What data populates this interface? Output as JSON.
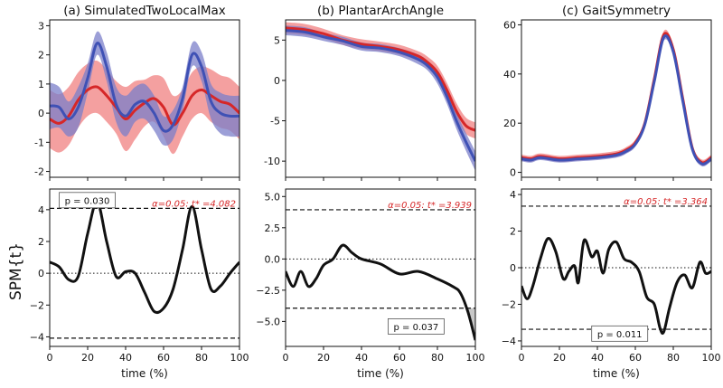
{
  "figure": {
    "ylabel": "SPM{t}",
    "xlabel": "time (%)"
  },
  "colors": {
    "red": "#d62728",
    "red_band": "#f08080",
    "blue": "#3f51b5",
    "blue_band": "#7b7fc9",
    "text": "#111111",
    "threshold_text": "#d62728",
    "shade": "#c8c8c8"
  },
  "chart_data": [
    {
      "id": "a-top",
      "type": "line",
      "title": "(a) SimulatedTwoLocalMax",
      "xlabel": "",
      "ylabel": "",
      "xlim": [
        0,
        100
      ],
      "ylim": [
        -2.2,
        3.2
      ],
      "xticks": [
        0,
        20,
        40,
        60,
        80,
        100
      ],
      "yticks": [
        -2,
        -1,
        0,
        1,
        2,
        3
      ],
      "show_xticklabels": false,
      "x": [
        0,
        5,
        10,
        15,
        20,
        25,
        30,
        35,
        40,
        45,
        50,
        55,
        60,
        65,
        70,
        75,
        80,
        85,
        90,
        95,
        100
      ],
      "series": [
        {
          "name": "red mean",
          "color": "red",
          "values": [
            -0.2,
            -0.35,
            -0.1,
            0.45,
            0.8,
            0.9,
            0.6,
            0.2,
            -0.2,
            0.1,
            0.35,
            0.5,
            0.2,
            -0.4,
            0.0,
            0.6,
            0.8,
            0.6,
            0.4,
            0.3,
            0.0
          ],
          "sd": [
            1.0,
            1.0,
            1.0,
            0.95,
            0.9,
            0.9,
            0.9,
            0.9,
            1.1,
            1.0,
            0.8,
            0.8,
            1.0,
            1.0,
            0.8,
            0.8,
            0.8,
            0.9,
            0.9,
            0.9,
            0.9
          ]
        },
        {
          "name": "blue mean",
          "color": "blue",
          "values": [
            0.25,
            0.2,
            -0.2,
            0.2,
            1.2,
            2.4,
            1.6,
            0.3,
            -0.1,
            0.3,
            0.4,
            0.0,
            -0.6,
            -0.4,
            0.5,
            2.0,
            1.6,
            0.4,
            0.0,
            -0.1,
            -0.1
          ],
          "sd": [
            0.8,
            0.7,
            0.6,
            0.7,
            0.5,
            0.4,
            0.5,
            0.6,
            0.7,
            0.6,
            0.6,
            0.6,
            0.5,
            0.5,
            0.4,
            0.4,
            0.5,
            0.6,
            0.7,
            0.7,
            0.7
          ]
        }
      ]
    },
    {
      "id": "b-top",
      "type": "line",
      "title": "(b) PlantarArchAngle",
      "xlabel": "",
      "ylabel": "",
      "xlim": [
        0,
        100
      ],
      "ylim": [
        -12,
        7.5
      ],
      "xticks": [
        0,
        20,
        40,
        60,
        80,
        100
      ],
      "yticks": [
        -10,
        -5,
        0,
        5
      ],
      "show_xticklabels": false,
      "x": [
        0,
        10,
        20,
        30,
        40,
        50,
        60,
        70,
        75,
        80,
        85,
        90,
        95,
        100
      ],
      "series": [
        {
          "name": "red mean",
          "color": "red",
          "values": [
            6.5,
            6.3,
            5.8,
            5.0,
            4.5,
            4.2,
            3.8,
            3.0,
            2.2,
            1.0,
            -1.2,
            -3.8,
            -5.6,
            -6.2
          ],
          "sd": [
            0.7,
            0.7,
            0.6,
            0.6,
            0.6,
            0.6,
            0.6,
            0.6,
            0.7,
            0.8,
            0.9,
            1.0,
            1.0,
            1.0
          ]
        },
        {
          "name": "blue mean",
          "color": "blue",
          "values": [
            6.2,
            6.0,
            5.4,
            4.9,
            4.2,
            4.0,
            3.5,
            2.6,
            1.8,
            0.4,
            -2.0,
            -5.0,
            -7.6,
            -10.0
          ],
          "sd": [
            0.6,
            0.6,
            0.5,
            0.5,
            0.5,
            0.5,
            0.5,
            0.6,
            0.6,
            0.8,
            0.9,
            1.0,
            1.1,
            1.2
          ]
        }
      ]
    },
    {
      "id": "c-top",
      "type": "line",
      "title": "(c) GaitSymmetry",
      "xlabel": "",
      "ylabel": "",
      "xlim": [
        0,
        100
      ],
      "ylim": [
        -2,
        62
      ],
      "xticks": [
        0,
        20,
        40,
        60,
        80,
        100
      ],
      "yticks": [
        0,
        20,
        40,
        60
      ],
      "show_xticklabels": false,
      "x": [
        0,
        5,
        10,
        20,
        30,
        40,
        50,
        55,
        60,
        65,
        70,
        75,
        80,
        85,
        90,
        95,
        100
      ],
      "series": [
        {
          "name": "red mean",
          "color": "red",
          "values": [
            6,
            5.5,
            6.5,
            5.5,
            6,
            6.5,
            7.5,
            9,
            12,
            20,
            38,
            56,
            50,
            30,
            10,
            4,
            6
          ],
          "sd": [
            1.2,
            1.2,
            1.2,
            1.2,
            1.2,
            1.2,
            1.2,
            1.2,
            1.3,
            1.5,
            1.5,
            1.5,
            1.5,
            1.5,
            1.4,
            1.2,
            1.2
          ]
        },
        {
          "name": "blue mean",
          "color": "blue",
          "values": [
            5.5,
            5,
            6,
            5,
            5.5,
            6,
            7,
            8.5,
            11.5,
            19.5,
            37,
            55,
            49,
            29,
            9.5,
            3.5,
            5.5
          ],
          "sd": [
            1.0,
            1.0,
            1.0,
            1.0,
            1.0,
            1.0,
            1.0,
            1.0,
            1.1,
            1.3,
            1.4,
            1.4,
            1.4,
            1.4,
            1.2,
            1.0,
            1.0
          ]
        }
      ]
    },
    {
      "id": "a-bottom",
      "type": "line",
      "title": "",
      "xlabel": "time (%)",
      "ylabel": "SPM{t}",
      "xlim": [
        0,
        100
      ],
      "ylim": [
        -4.6,
        5.3
      ],
      "xticks": [
        0,
        20,
        40,
        60,
        80,
        100
      ],
      "yticks": [
        -4,
        -2,
        0,
        2,
        4
      ],
      "ytick_labels": [
        "−4",
        "−2",
        "0",
        "2",
        "4"
      ],
      "show_xticklabels": true,
      "x": [
        0,
        5,
        10,
        15,
        20,
        25,
        30,
        35,
        40,
        45,
        50,
        55,
        60,
        65,
        70,
        75,
        80,
        85,
        90,
        95,
        100
      ],
      "values": [
        0.7,
        0.4,
        -0.4,
        -0.2,
        2.5,
        4.5,
        2.0,
        -0.2,
        0.1,
        0.0,
        -1.2,
        -2.4,
        -2.2,
        -1.0,
        1.5,
        4.2,
        1.5,
        -1.0,
        -0.8,
        0.0,
        0.7
      ],
      "threshold": 4.082,
      "threshold_label": "α=0.05:  t* =4.082",
      "p_label": "p = 0.030",
      "p_anchor": [
        5,
        4.6
      ],
      "shaded_clusters": []
    },
    {
      "id": "b-bottom",
      "type": "line",
      "title": "",
      "xlabel": "time (%)",
      "ylabel": "",
      "xlim": [
        0,
        100
      ],
      "ylim": [
        -7.0,
        5.6
      ],
      "xticks": [
        0,
        20,
        40,
        60,
        80,
        100
      ],
      "yticks": [
        -5.0,
        -2.5,
        0.0,
        2.5,
        5.0
      ],
      "ytick_labels": [
        "−5.0",
        "−2.5",
        "0.0",
        "2.5",
        "5.0"
      ],
      "show_xticklabels": true,
      "x": [
        0,
        4,
        8,
        12,
        16,
        20,
        25,
        30,
        35,
        40,
        50,
        60,
        70,
        80,
        88,
        92,
        96,
        100
      ],
      "values": [
        -1.0,
        -2.2,
        -1.0,
        -2.2,
        -1.6,
        -0.5,
        0.0,
        1.1,
        0.5,
        0.0,
        -0.4,
        -1.2,
        -1.0,
        -1.6,
        -2.2,
        -2.7,
        -4.2,
        -6.5
      ],
      "threshold": 3.939,
      "threshold_label": "α=0.05:  t* =3.939",
      "p_label": "p = 0.037",
      "p_anchor": [
        54,
        -5.4
      ],
      "shaded_clusters": [
        [
          96,
          100
        ]
      ]
    },
    {
      "id": "c-bottom",
      "type": "line",
      "title": "",
      "xlabel": "time (%)",
      "ylabel": "",
      "xlim": [
        0,
        100
      ],
      "ylim": [
        -4.3,
        4.3
      ],
      "xticks": [
        0,
        20,
        40,
        60,
        80,
        100
      ],
      "yticks": [
        -4,
        -2,
        0,
        2,
        4
      ],
      "ytick_labels": [
        "−4",
        "−2",
        "0",
        "2",
        "4"
      ],
      "show_xticklabels": true,
      "x": [
        0,
        3,
        6,
        10,
        14,
        18,
        22,
        25,
        28,
        30,
        33,
        37,
        40,
        43,
        46,
        50,
        54,
        58,
        62,
        66,
        70,
        73,
        75,
        78,
        82,
        86,
        90,
        94,
        97,
        100
      ],
      "values": [
        -1.0,
        -1.7,
        -1.0,
        0.5,
        1.6,
        0.9,
        -0.6,
        -0.2,
        0.1,
        -0.8,
        1.5,
        0.6,
        0.9,
        -0.3,
        1.0,
        1.4,
        0.5,
        0.3,
        -0.2,
        -1.6,
        -2.0,
        -3.3,
        -3.5,
        -2.2,
        -0.8,
        -0.4,
        -1.1,
        0.3,
        -0.3,
        -0.2
      ],
      "threshold": 3.364,
      "threshold_label": "α=0.05:  t* =3.364",
      "p_label": "p = 0.011",
      "p_anchor": [
        37,
        -3.6
      ],
      "shaded_clusters": []
    }
  ]
}
